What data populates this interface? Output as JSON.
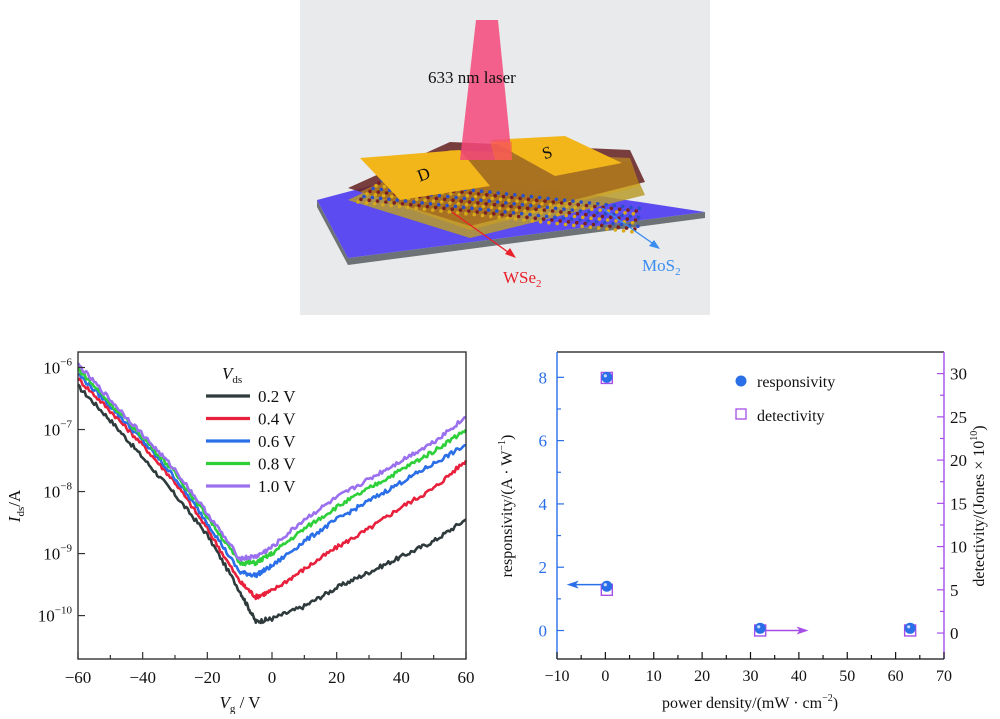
{
  "schematic": {
    "laser_label": "633 nm laser",
    "drain_label": "D",
    "source_label": "S",
    "wse2_label": "WSe",
    "wse2_sub": "2",
    "mos2_label": "MoS",
    "mos2_sub": "2",
    "colors": {
      "background": "#e9eaeb",
      "laser": "#f4487a",
      "electrode": "#f2b51a",
      "substrate_top": "#5b4bf0",
      "substrate_side": "#6c7275",
      "wse2": "#e8202a",
      "mos2": "#3a8df0"
    }
  },
  "chart_data": [
    {
      "type": "line",
      "xlabel": "V",
      "xlabel_sub": "g",
      "xlabel_unit": " / V",
      "ylabel": "I",
      "ylabel_sub": "ds",
      "ylabel_unit": "/A",
      "yscale": "log",
      "xlim": [
        -60,
        60
      ],
      "ylim_log10": [
        -10.7,
        -5.75
      ],
      "x_ticks": [
        -60,
        -40,
        -20,
        0,
        20,
        40,
        60
      ],
      "x_tick_labels": [
        "−60",
        "−40",
        "−20",
        "0",
        "20",
        "40",
        "60"
      ],
      "y_ticks_log10": [
        -6,
        -7,
        -8,
        -9,
        -10
      ],
      "y_tick_labels": [
        {
          "base": "10",
          "exp": "−6"
        },
        {
          "base": "10",
          "exp": "−7"
        },
        {
          "base": "10",
          "exp": "−8"
        },
        {
          "base": "10",
          "exp": "−9"
        },
        {
          "base": "10",
          "exp": "−10"
        }
      ],
      "legend_title": "V",
      "legend_title_sub": "ds",
      "legend_position": "top-center",
      "series": [
        {
          "name": "0.2 V",
          "color": "#2e3a3c",
          "x": [
            -60,
            -50,
            -40,
            -30,
            -20,
            -10,
            -5,
            0,
            10,
            20,
            30,
            40,
            50,
            60
          ],
          "log10_y": [
            -6.3,
            -6.85,
            -7.45,
            -8.05,
            -8.7,
            -9.6,
            -10.1,
            -10.05,
            -9.85,
            -9.55,
            -9.3,
            -9.05,
            -8.8,
            -8.45
          ]
        },
        {
          "name": "0.4 V",
          "color": "#e8203c",
          "x": [
            -60,
            -50,
            -40,
            -30,
            -20,
            -10,
            -5,
            0,
            10,
            20,
            30,
            40,
            50,
            60
          ],
          "log10_y": [
            -6.18,
            -6.7,
            -7.25,
            -7.85,
            -8.6,
            -9.45,
            -9.7,
            -9.6,
            -9.25,
            -8.9,
            -8.6,
            -8.25,
            -7.95,
            -7.5
          ]
        },
        {
          "name": "0.6 V",
          "color": "#2a6fe8",
          "x": [
            -60,
            -50,
            -40,
            -30,
            -20,
            -10,
            -5,
            0,
            10,
            20,
            30,
            40,
            50,
            60
          ],
          "log10_y": [
            -6.1,
            -6.62,
            -7.18,
            -7.78,
            -8.5,
            -9.3,
            -9.35,
            -9.2,
            -8.8,
            -8.45,
            -8.15,
            -7.85,
            -7.55,
            -7.25
          ]
        },
        {
          "name": "0.8 V",
          "color": "#2ed03a",
          "x": [
            -60,
            -50,
            -40,
            -30,
            -20,
            -10,
            -5,
            0,
            10,
            20,
            30,
            40,
            50,
            60
          ],
          "log10_y": [
            -6.02,
            -6.58,
            -7.12,
            -7.7,
            -8.4,
            -9.15,
            -9.15,
            -9.0,
            -8.6,
            -8.25,
            -7.95,
            -7.65,
            -7.35,
            -7.0
          ]
        },
        {
          "name": "1.0 V",
          "color": "#9a70ee",
          "x": [
            -60,
            -50,
            -40,
            -30,
            -20,
            -10,
            -5,
            0,
            10,
            20,
            30,
            40,
            50,
            60
          ],
          "log10_y": [
            -5.95,
            -6.52,
            -7.08,
            -7.65,
            -8.35,
            -9.08,
            -9.05,
            -8.9,
            -8.45,
            -8.1,
            -7.8,
            -7.5,
            -7.2,
            -6.8
          ]
        }
      ]
    },
    {
      "type": "scatter",
      "xlabel": "power density",
      "xlabel_unit": "/(mW · cm",
      "xlabel_unit_exp": "−2",
      "xlabel_unit_close": ")",
      "xlim": [
        -10,
        70
      ],
      "x_ticks": [
        -10,
        0,
        10,
        20,
        30,
        40,
        50,
        60,
        70
      ],
      "x_tick_labels": [
        "−10",
        "0",
        "10",
        "20",
        "30",
        "40",
        "50",
        "60",
        "70"
      ],
      "y_left": {
        "label": "responsivity",
        "unit": "/(A · W",
        "unit_exp": "−1",
        "unit_close": ")",
        "lim": [
          -0.9,
          8.8
        ],
        "ticks": [
          0,
          2,
          4,
          6,
          8
        ],
        "tick_labels": [
          "0",
          "2",
          "4",
          "6",
          "8"
        ],
        "color": "#2a6fe8"
      },
      "y_right": {
        "label": "detectivity",
        "unit": "/(Jones × 10",
        "unit_exp": "10",
        "unit_close": ")",
        "lim": [
          -3,
          32.5
        ],
        "ticks": [
          0,
          5,
          10,
          15,
          20,
          25,
          30
        ],
        "tick_labels": [
          "0",
          "5",
          "10",
          "15",
          "20",
          "25",
          "30"
        ],
        "color": "#a64ee8"
      },
      "legend_position": "top-right",
      "series": [
        {
          "name": "responsivity",
          "axis": "left",
          "marker": "filled-circle",
          "color": "#2a6fe8",
          "x": [
            0.3,
            0.3,
            32,
            63
          ],
          "y": [
            8.0,
            1.4,
            0.07,
            0.07
          ]
        },
        {
          "name": "detectivity",
          "axis": "right",
          "marker": "open-square",
          "color": "#a64ee8",
          "x": [
            0.3,
            0.3,
            32,
            63
          ],
          "y": [
            29.5,
            5.0,
            0.3,
            0.3
          ]
        }
      ],
      "annotations": [
        {
          "type": "arrow",
          "direction": "left",
          "from_x": 0,
          "to_x": -8,
          "y_left": 1.45,
          "color": "#2a6fe8",
          "meaning": "responsivity uses left axis"
        },
        {
          "type": "arrow",
          "direction": "right",
          "from_x": 32,
          "to_x": 42,
          "y_right": 0.3,
          "color": "#a64ee8",
          "meaning": "detectivity uses right axis"
        }
      ]
    }
  ]
}
